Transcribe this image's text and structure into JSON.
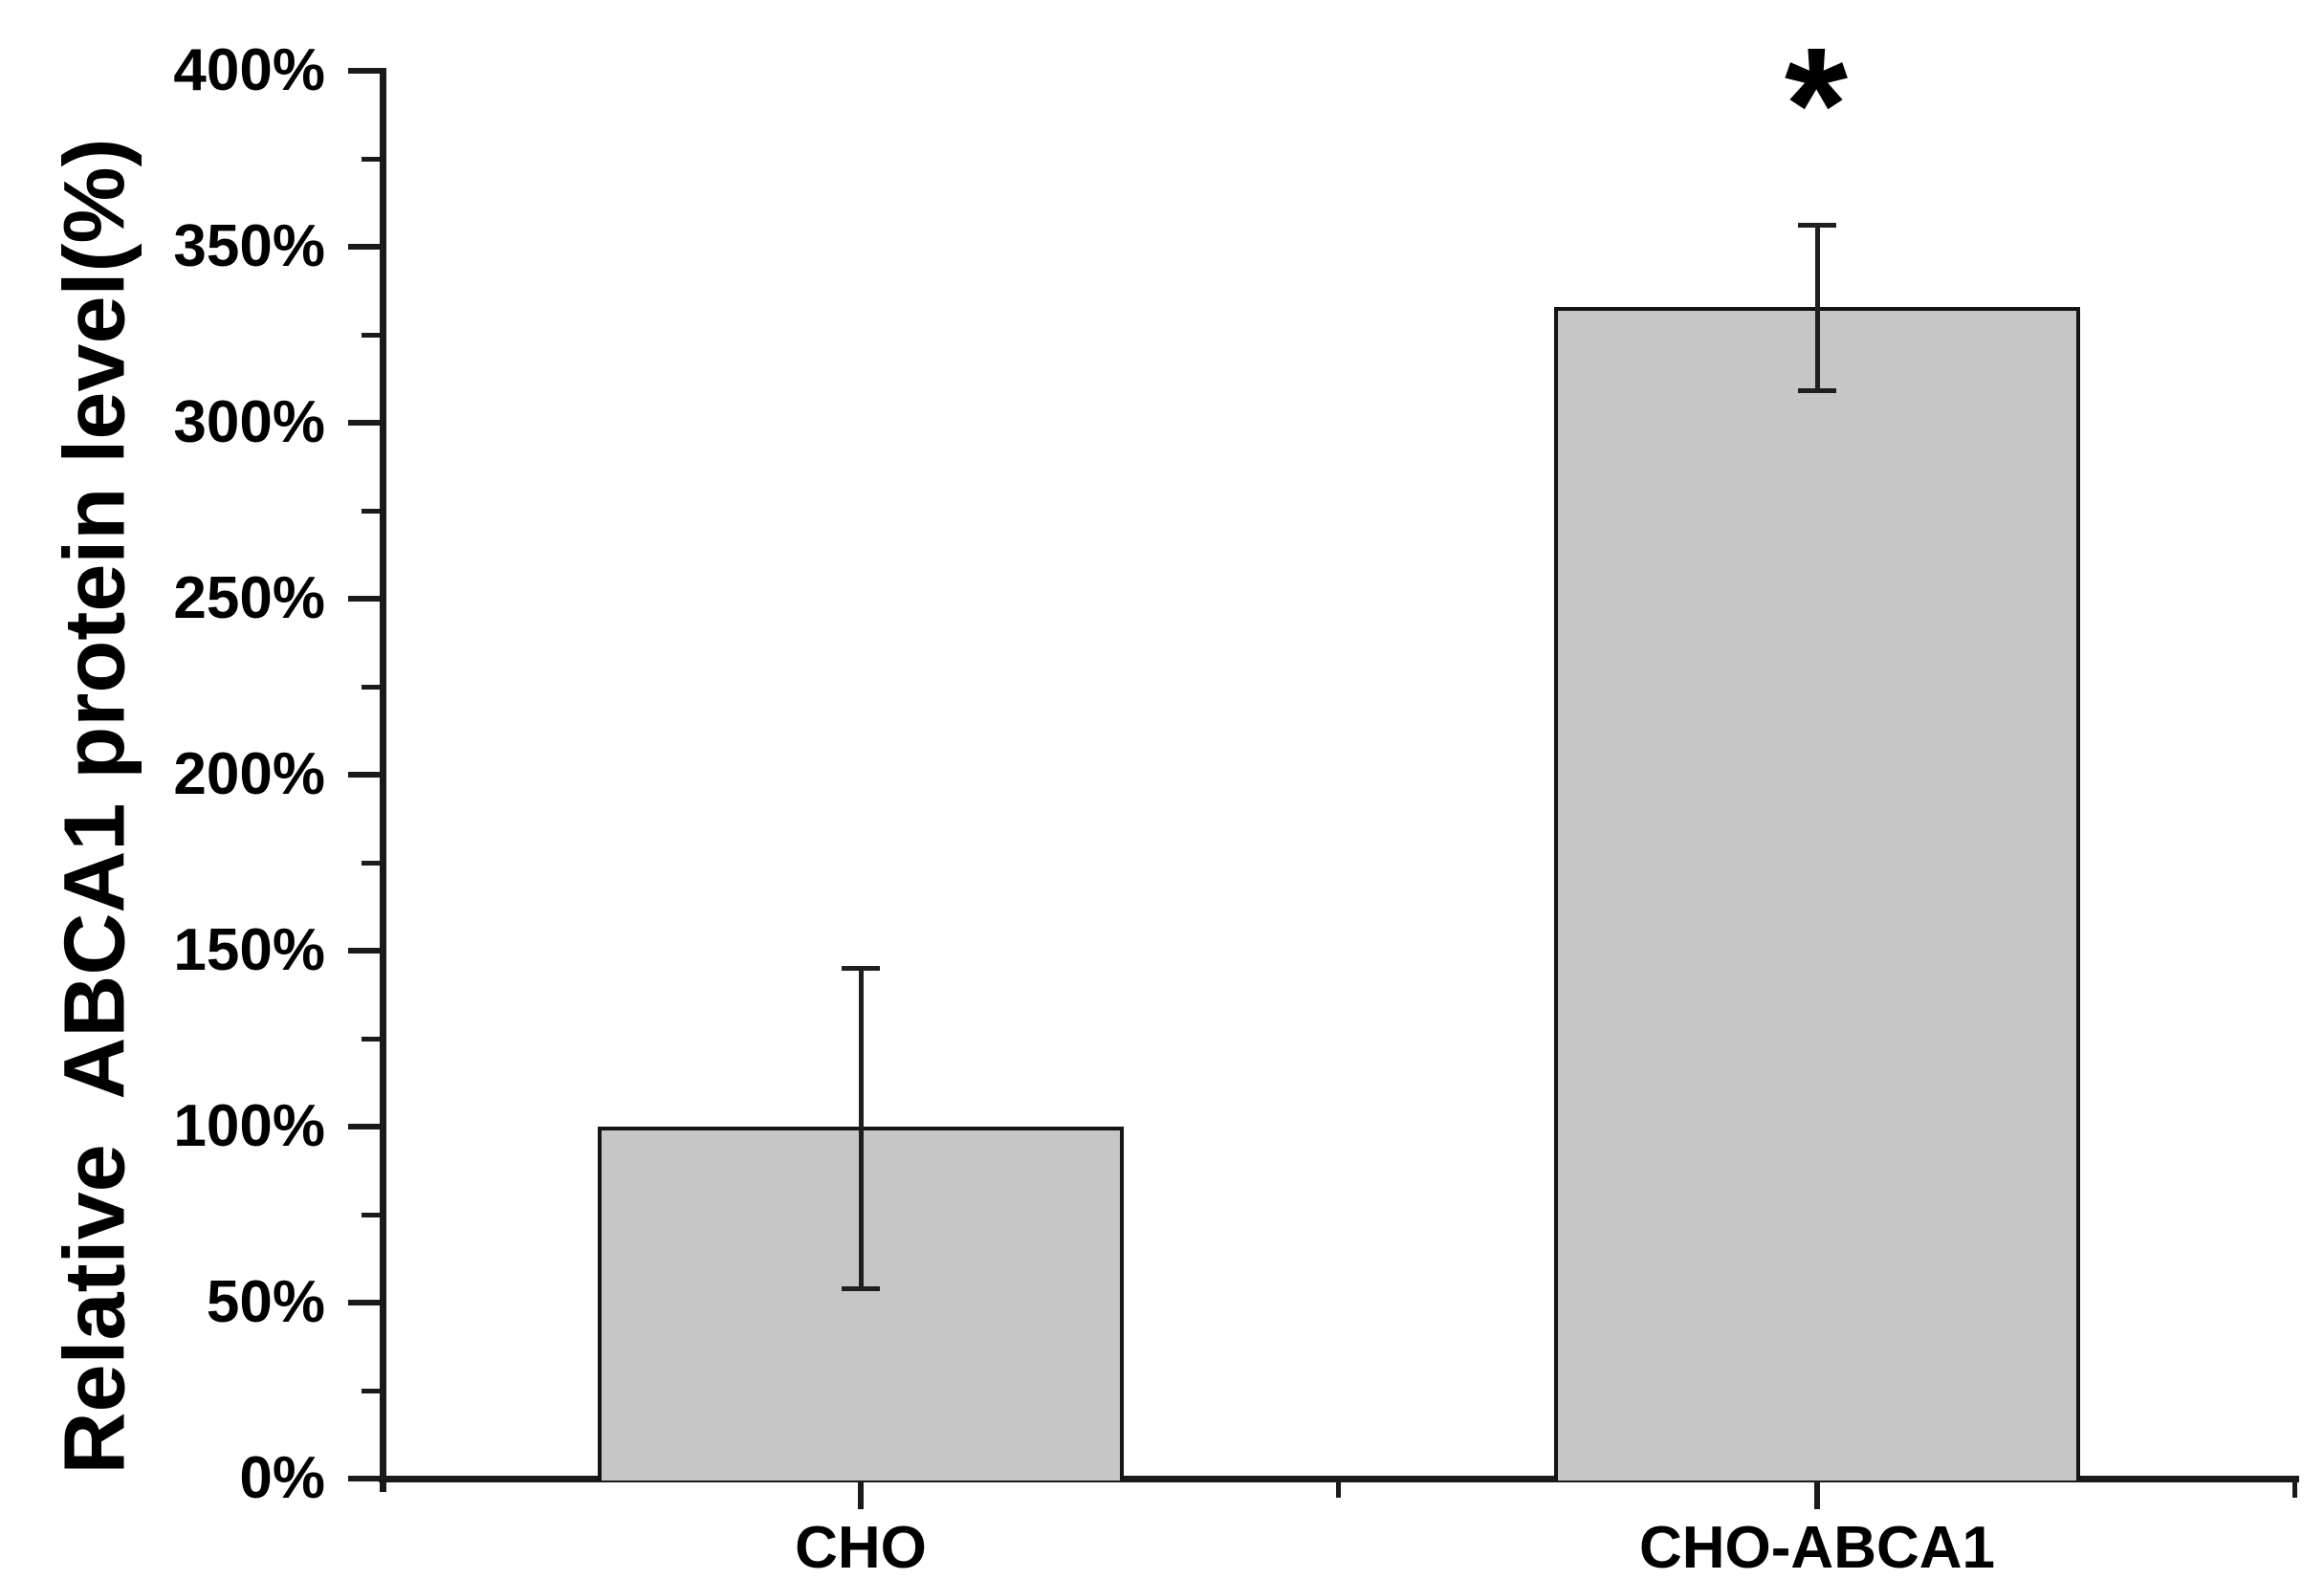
{
  "figure": {
    "background_color": "#ffffff",
    "text_color": "#000000",
    "axis_color": "#1a1a1a"
  },
  "chart_data": {
    "type": "bar",
    "title": "",
    "xlabel": "",
    "ylabel": "Relative  ABCA1 protein level(%)",
    "categories": [
      "CHO",
      "CHO-ABCA1"
    ],
    "values": [
      100,
      333
    ],
    "error_plus": [
      45,
      23
    ],
    "error_minus": [
      46,
      24
    ],
    "y_axis": {
      "min": 0,
      "max": 400,
      "major_tick_step": 50,
      "minor_tick_step": 25,
      "unit": "%",
      "tick_labels": [
        "0%",
        "50%",
        "100%",
        "150%",
        "200%",
        "250%",
        "300%",
        "350%",
        "400%"
      ]
    },
    "annotations": [
      {
        "text": "*",
        "target_category": "CHO-ABCA1",
        "meaning": "statistically-significant"
      }
    ],
    "bar_fill_color": "#c6c6c6",
    "bar_border_color": "#141414",
    "error_bar_color": "#1f1f1f",
    "grid": false,
    "legend": false
  }
}
